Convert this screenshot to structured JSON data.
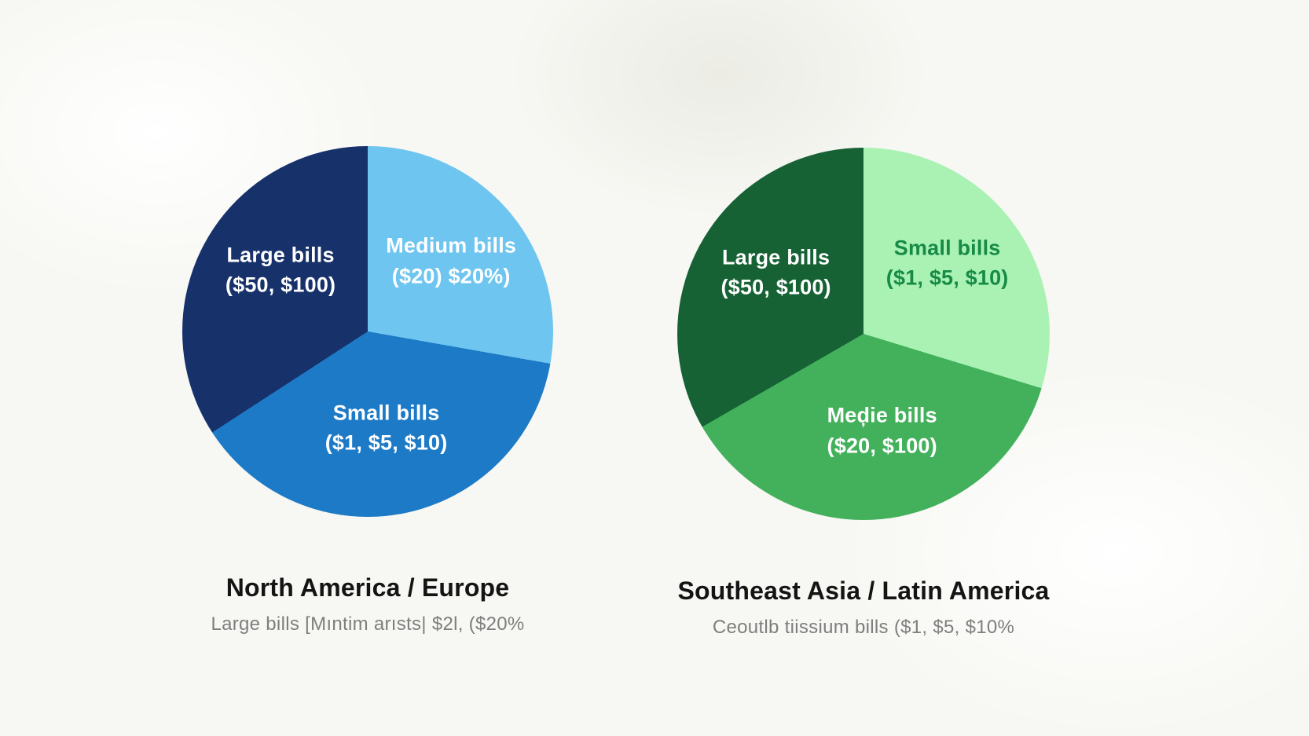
{
  "page": {
    "background_color": "#f7f7f3",
    "title_color": "#141414",
    "subtitle_color": "#7e7e7e"
  },
  "chart_data": [
    {
      "type": "pie",
      "title": "North America / Europe",
      "subtitle": "Large bills [Mıntim arısts| $2l, ($20%",
      "palette_theme": "blue",
      "legend": "none",
      "slices": [
        {
          "label": "Medium bills",
          "sublabel": "($20) $20%)",
          "value_pct_approx": 27.8,
          "start_deg": 0,
          "end_deg": 100,
          "color": "#6ec5f0",
          "text_color": "#ffffff",
          "label_pos": "top-right"
        },
        {
          "label": "Small bills",
          "sublabel": "($1, $5, $10)",
          "value_pct_approx": 38.1,
          "start_deg": 100,
          "end_deg": 237,
          "color": "#1d7ac6",
          "text_color": "#ffffff",
          "label_pos": "bottom"
        },
        {
          "label": "Large bills",
          "sublabel": "($50, $100)",
          "value_pct_approx": 34.1,
          "start_deg": 237,
          "end_deg": 360,
          "color": "#17316b",
          "text_color": "#ffffff",
          "label_pos": "top-left"
        }
      ]
    },
    {
      "type": "pie",
      "title": "Southeast Asia / Latin America",
      "subtitle": "Ceoutlb tiissium bills ($1, $5, $10%",
      "palette_theme": "green",
      "legend": "none",
      "slices": [
        {
          "label": "Small bills",
          "sublabel": "($1, $5, $10)",
          "value_pct_approx": 29.7,
          "start_deg": 0,
          "end_deg": 107,
          "color": "#a9f2b4",
          "text_color": "#178a46",
          "label_pos": "top-right"
        },
        {
          "label": "Meḑie bills",
          "sublabel": "($20, $100)",
          "value_pct_approx": 36.9,
          "start_deg": 107,
          "end_deg": 240,
          "color": "#43b15b",
          "text_color": "#ffffff",
          "label_pos": "bottom"
        },
        {
          "label": "Large bills",
          "sublabel": "($50, $100)",
          "value_pct_approx": 33.4,
          "start_deg": 240,
          "end_deg": 360,
          "color": "#166235",
          "text_color": "#ffffff",
          "label_pos": "top-left"
        }
      ]
    }
  ]
}
